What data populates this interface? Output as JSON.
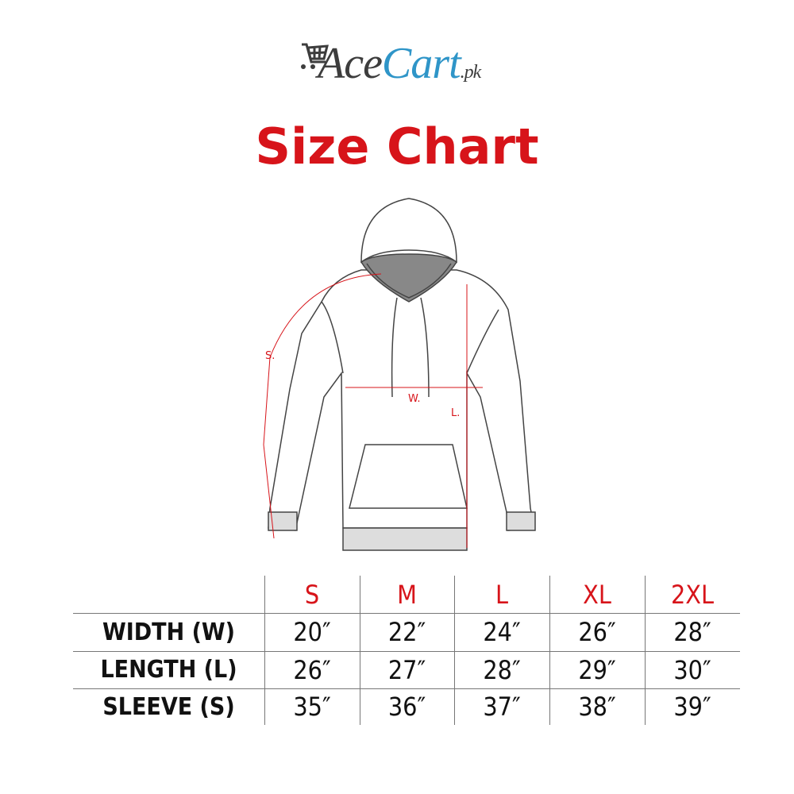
{
  "logo": {
    "part1": "Ace",
    "part2": "Cart",
    "part3": ".pk",
    "icon": "shopping-cart-icon"
  },
  "title": "Size Chart",
  "diagram": {
    "sleeve_label": "S.",
    "width_label": "W.",
    "length_label": "L."
  },
  "table": {
    "sizes": [
      "S",
      "M",
      "L",
      "XL",
      "2XL"
    ],
    "rows": [
      {
        "label": "WIDTH (W)",
        "values": [
          "20″",
          "22″",
          "24″",
          "26″",
          "28″"
        ]
      },
      {
        "label": "LENGTH (L)",
        "values": [
          "26″",
          "27″",
          "28″",
          "29″",
          "30″"
        ]
      },
      {
        "label": "SLEEVE (S)",
        "values": [
          "35″",
          "36″",
          "37″",
          "38″",
          "39″"
        ]
      }
    ]
  },
  "colors": {
    "accent": "#d7141a",
    "logo_blue": "#2f95c8",
    "logo_gray": "#3d3d3d"
  }
}
